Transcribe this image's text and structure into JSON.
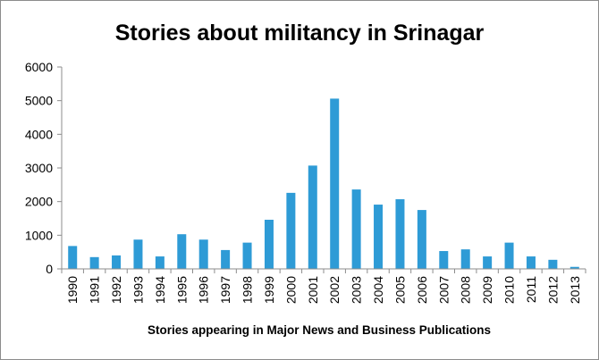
{
  "chart_data": {
    "type": "bar",
    "title": "Stories  about militancy in Srinagar",
    "xlabel": "Stories appearing in Major News and Business Publications",
    "ylabel": "",
    "ylim": [
      0,
      6000
    ],
    "yticks": [
      0,
      1000,
      2000,
      3000,
      4000,
      5000,
      6000
    ],
    "grid": false,
    "legend": "none",
    "bar_color": "#2e9bd6",
    "categories": [
      "1990",
      "1991",
      "1992",
      "1993",
      "1994",
      "1995",
      "1996",
      "1997",
      "1998",
      "1999",
      "2000",
      "2001",
      "2002",
      "2003",
      "2004",
      "2005",
      "2006",
      "2007",
      "2008",
      "2009",
      "2010",
      "2011",
      "2012",
      "2013"
    ],
    "values": [
      680,
      350,
      400,
      870,
      370,
      1030,
      870,
      560,
      780,
      1460,
      2260,
      3070,
      5060,
      2360,
      1910,
      2070,
      1750,
      530,
      580,
      370,
      780,
      370,
      270,
      60
    ]
  }
}
